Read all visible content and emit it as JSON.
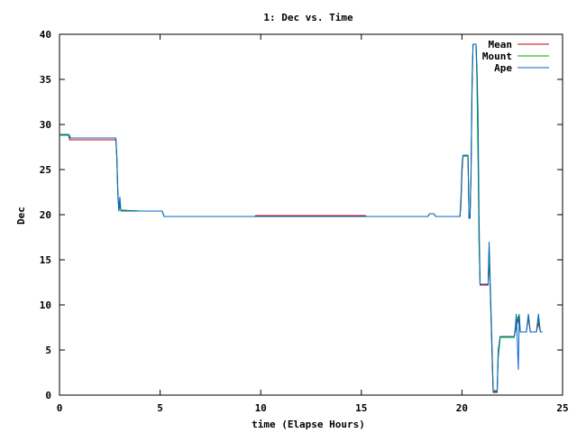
{
  "chart_data": {
    "type": "line",
    "title": "1: Dec vs. Time",
    "xlabel": "time (Elapse Hours)",
    "ylabel": "Dec",
    "xlim": [
      0,
      25
    ],
    "ylim": [
      0,
      40
    ],
    "x_ticks": [
      0,
      5,
      10,
      15,
      20,
      25
    ],
    "y_ticks": [
      0,
      5,
      10,
      15,
      20,
      25,
      30,
      35,
      40
    ],
    "grid": false,
    "legend_position": "top-right",
    "series": [
      {
        "name": "Mean",
        "color": "#cc0000",
        "points": [
          [
            0,
            28.9
          ],
          [
            0.45,
            28.9
          ],
          [
            0.5,
            28.3
          ],
          [
            2.8,
            28.3
          ],
          [
            2.85,
            26.4
          ],
          [
            2.9,
            22.5
          ],
          [
            2.95,
            20.4
          ],
          [
            3.0,
            21.2
          ],
          [
            3.05,
            20.5
          ],
          [
            4.0,
            20.4
          ],
          [
            5.1,
            20.4
          ],
          [
            5.2,
            19.8
          ],
          [
            9.7,
            19.8
          ],
          [
            9.75,
            19.9
          ],
          [
            15.2,
            19.9
          ],
          [
            15.25,
            19.8
          ],
          [
            18.3,
            19.8
          ],
          [
            18.4,
            20.1
          ],
          [
            18.6,
            20.1
          ],
          [
            18.7,
            19.8
          ],
          [
            19.9,
            19.8
          ],
          [
            19.95,
            21.0
          ],
          [
            20.0,
            24.5
          ],
          [
            20.05,
            26.5
          ],
          [
            20.3,
            26.5
          ],
          [
            20.35,
            19.6
          ],
          [
            20.4,
            19.6
          ],
          [
            20.45,
            24.0
          ],
          [
            20.5,
            33.5
          ],
          [
            20.55,
            38.9
          ],
          [
            20.7,
            38.9
          ],
          [
            20.75,
            35.0
          ],
          [
            20.8,
            28.0
          ],
          [
            20.85,
            17.0
          ],
          [
            20.9,
            12.2
          ],
          [
            21.3,
            12.2
          ],
          [
            21.35,
            16.0
          ],
          [
            21.4,
            12.0
          ],
          [
            21.5,
            4.0
          ],
          [
            21.55,
            0.3
          ],
          [
            21.75,
            0.3
          ],
          [
            21.8,
            4.5
          ],
          [
            21.9,
            6.5
          ],
          [
            22.6,
            6.5
          ],
          [
            22.65,
            7.0
          ],
          [
            22.8,
            8.5
          ],
          [
            22.9,
            7.0
          ],
          [
            23.2,
            7.0
          ],
          [
            23.3,
            8.5
          ],
          [
            23.4,
            7.0
          ],
          [
            23.7,
            7.0
          ],
          [
            23.8,
            8.0
          ],
          [
            23.9,
            7.0
          ],
          [
            24.0,
            7.0
          ]
        ]
      },
      {
        "name": "Mount",
        "color": "#00aa00",
        "points": [
          [
            0,
            28.8
          ],
          [
            0.5,
            28.8
          ],
          [
            0.55,
            28.5
          ],
          [
            2.8,
            28.5
          ],
          [
            2.85,
            26.0
          ],
          [
            2.9,
            22.0
          ],
          [
            2.95,
            20.4
          ],
          [
            3.0,
            21.5
          ],
          [
            3.05,
            20.4
          ],
          [
            4.0,
            20.4
          ],
          [
            5.1,
            20.4
          ],
          [
            5.2,
            19.8
          ],
          [
            18.3,
            19.8
          ],
          [
            18.4,
            20.1
          ],
          [
            18.6,
            20.1
          ],
          [
            18.7,
            19.8
          ],
          [
            19.9,
            19.8
          ],
          [
            19.95,
            21.5
          ],
          [
            20.0,
            25.5
          ],
          [
            20.05,
            26.6
          ],
          [
            20.3,
            26.6
          ],
          [
            20.35,
            19.7
          ],
          [
            20.4,
            19.7
          ],
          [
            20.45,
            24.5
          ],
          [
            20.5,
            34.0
          ],
          [
            20.55,
            38.9
          ],
          [
            20.7,
            38.9
          ],
          [
            20.75,
            34.0
          ],
          [
            20.8,
            26.0
          ],
          [
            20.85,
            17.0
          ],
          [
            20.9,
            12.3
          ],
          [
            21.3,
            12.3
          ],
          [
            21.35,
            16.5
          ],
          [
            21.4,
            12.0
          ],
          [
            21.5,
            4.5
          ],
          [
            21.55,
            0.4
          ],
          [
            21.75,
            0.4
          ],
          [
            21.8,
            4.0
          ],
          [
            21.9,
            6.4
          ],
          [
            22.6,
            6.4
          ],
          [
            22.65,
            7.2
          ],
          [
            22.8,
            8.8
          ],
          [
            22.9,
            7.0
          ],
          [
            23.2,
            7.0
          ],
          [
            23.3,
            8.8
          ],
          [
            23.4,
            7.0
          ],
          [
            23.7,
            7.0
          ],
          [
            23.8,
            8.5
          ],
          [
            23.9,
            7.0
          ],
          [
            24.0,
            7.0
          ]
        ]
      },
      {
        "name": "Ape",
        "color": "#0066cc",
        "points": [
          [
            0,
            28.9
          ],
          [
            0.45,
            28.9
          ],
          [
            0.5,
            28.5
          ],
          [
            2.8,
            28.5
          ],
          [
            2.85,
            26.5
          ],
          [
            2.9,
            22.5
          ],
          [
            2.95,
            20.4
          ],
          [
            3.0,
            22.0
          ],
          [
            3.05,
            20.5
          ],
          [
            4.0,
            20.4
          ],
          [
            5.1,
            20.4
          ],
          [
            5.2,
            19.8
          ],
          [
            18.3,
            19.8
          ],
          [
            18.4,
            20.1
          ],
          [
            18.6,
            20.1
          ],
          [
            18.7,
            19.8
          ],
          [
            19.9,
            19.8
          ],
          [
            19.95,
            22.0
          ],
          [
            20.0,
            25.0
          ],
          [
            20.05,
            26.5
          ],
          [
            20.3,
            26.5
          ],
          [
            20.35,
            19.6
          ],
          [
            20.4,
            19.6
          ],
          [
            20.45,
            25.0
          ],
          [
            20.5,
            35.0
          ],
          [
            20.55,
            38.9
          ],
          [
            20.7,
            38.9
          ],
          [
            20.75,
            36.0
          ],
          [
            20.8,
            31.0
          ],
          [
            20.85,
            20.0
          ],
          [
            20.9,
            12.3
          ],
          [
            21.3,
            12.3
          ],
          [
            21.35,
            17.0
          ],
          [
            21.4,
            13.0
          ],
          [
            21.5,
            5.0
          ],
          [
            21.55,
            0.5
          ],
          [
            21.75,
            0.5
          ],
          [
            21.8,
            5.0
          ],
          [
            21.9,
            6.5
          ],
          [
            22.6,
            6.5
          ],
          [
            22.65,
            7.5
          ],
          [
            22.7,
            9.0
          ],
          [
            22.75,
            6.0
          ],
          [
            22.8,
            2.8
          ],
          [
            22.85,
            9.0
          ],
          [
            22.9,
            7.0
          ],
          [
            23.2,
            7.0
          ],
          [
            23.3,
            9.0
          ],
          [
            23.4,
            7.0
          ],
          [
            23.7,
            7.0
          ],
          [
            23.8,
            9.0
          ],
          [
            23.9,
            7.0
          ],
          [
            24.0,
            7.0
          ]
        ]
      }
    ]
  }
}
